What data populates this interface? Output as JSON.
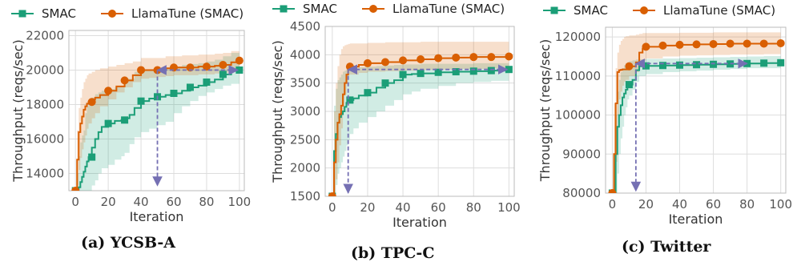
{
  "colors": {
    "smac": "#1b9e77",
    "llamatune": "#d95f02",
    "arrow": "#7570b3",
    "grid": "#dddddd"
  },
  "legend": {
    "smac": "SMAC",
    "llamatune": "LlamaTune (SMAC)"
  },
  "captions": [
    "(a) YCSB-A",
    "(b) TPC-C",
    "(c) Twitter"
  ],
  "chart_data": [
    {
      "type": "line",
      "xlabel": "Iteration",
      "ylabel": "Throughput (reqs/sec)",
      "xlim": [
        -4,
        103
      ],
      "ylim": [
        13000,
        22300
      ],
      "xticks": [
        "0",
        "20",
        "40",
        "60",
        "80",
        "100"
      ],
      "yticks": [
        "14000",
        "16000",
        "18000",
        "20000",
        "22000"
      ],
      "grid": true,
      "legend_position": "top",
      "series": [
        {
          "name": "SMAC",
          "step_x": [
            0,
            1,
            2,
            3,
            4,
            5,
            6,
            7,
            8,
            10,
            12,
            14,
            16,
            20,
            24,
            28,
            30,
            33,
            36,
            40,
            45,
            50,
            55,
            60,
            65,
            70,
            75,
            80,
            85,
            90,
            95,
            100
          ],
          "step_y": [
            13000,
            13050,
            13200,
            13500,
            13800,
            14100,
            14400,
            14700,
            14950,
            15500,
            16000,
            16400,
            16700,
            16900,
            17050,
            17100,
            17200,
            17400,
            17800,
            18200,
            18350,
            18450,
            18550,
            18650,
            18800,
            19000,
            19100,
            19300,
            19450,
            19750,
            19950,
            20000
          ],
          "upper": [
            13000,
            14000,
            15000,
            15800,
            16200,
            16500,
            17500,
            17900,
            18200,
            18400,
            18600,
            18700,
            18800,
            18900,
            19000,
            19000,
            19500,
            19500,
            19900,
            20000,
            20000,
            20000,
            20100,
            20200,
            20300,
            20350,
            20400,
            20500,
            20600,
            20800,
            21000,
            21100
          ],
          "lower": [
            13000,
            13000,
            13000,
            13000,
            13000,
            13000,
            13000,
            13000,
            13000,
            13300,
            13600,
            14000,
            14300,
            14500,
            14800,
            15000,
            15200,
            15700,
            16100,
            16400,
            16600,
            16800,
            17000,
            17500,
            17900,
            18200,
            18500,
            18700,
            18900,
            19100,
            19200,
            19200
          ],
          "markers_x": [
            0,
            10,
            20,
            30,
            40,
            50,
            60,
            70,
            80,
            90,
            100
          ],
          "markers_y": [
            13000,
            14950,
            16900,
            17100,
            18200,
            18450,
            18650,
            19000,
            19300,
            19750,
            20000
          ]
        },
        {
          "name": "LlamaTune (SMAC)",
          "step_x": [
            0,
            1,
            2,
            3,
            4,
            5,
            6,
            7,
            8,
            10,
            12,
            15,
            20,
            25,
            30,
            35,
            40,
            45,
            50,
            55,
            60,
            65,
            70,
            75,
            80,
            85,
            90,
            95,
            100
          ],
          "step_y": [
            13000,
            14800,
            16400,
            16900,
            17300,
            17700,
            17900,
            18050,
            18150,
            18300,
            18400,
            18550,
            18800,
            19050,
            19400,
            19700,
            20000,
            20000,
            20000,
            20100,
            20150,
            20150,
            20150,
            20200,
            20200,
            20250,
            20300,
            20450,
            20550
          ],
          "upper": [
            13000,
            16500,
            17800,
            18400,
            18900,
            19300,
            19500,
            19700,
            19800,
            19900,
            20000,
            20100,
            20200,
            20300,
            20400,
            20500,
            20700,
            20700,
            20700,
            20800,
            20800,
            20850,
            20850,
            20900,
            20900,
            20950,
            21000,
            21100,
            21200
          ],
          "lower": [
            13000,
            13300,
            14200,
            14900,
            15400,
            15800,
            16200,
            16600,
            16900,
            17200,
            17500,
            17900,
            18300,
            18700,
            19000,
            19300,
            19500,
            19550,
            19600,
            19650,
            19700,
            19700,
            19700,
            19750,
            19750,
            19800,
            19850,
            19900,
            19950
          ],
          "markers_x": [
            0,
            10,
            20,
            30,
            40,
            50,
            60,
            70,
            80,
            90,
            100
          ],
          "markers_y": [
            13000,
            18150,
            18800,
            19400,
            20000,
            20000,
            20150,
            20150,
            20200,
            20300,
            20550
          ]
        }
      ],
      "arrow_h": [
        [
          99,
          20000
        ],
        [
          50,
          20000
        ]
      ],
      "arrow_v": [
        [
          50,
          20000
        ],
        [
          50,
          13300
        ]
      ]
    },
    {
      "type": "line",
      "xlabel": "Iteration",
      "ylabel": "Throughput (reqs/sec)",
      "xlim": [
        -4,
        103
      ],
      "ylim": [
        1500,
        4500
      ],
      "xticks": [
        "0",
        "20",
        "40",
        "60",
        "80",
        "100"
      ],
      "yticks": [
        "1500",
        "2000",
        "2500",
        "3000",
        "3500",
        "4000",
        "4500"
      ],
      "grid": true,
      "legend_position": "top",
      "series": [
        {
          "name": "SMAC",
          "step_x": [
            0,
            1,
            2,
            3,
            4,
            5,
            6,
            7,
            8,
            9,
            10,
            12,
            15,
            20,
            25,
            30,
            35,
            40,
            45,
            50,
            60,
            70,
            80,
            90,
            100
          ],
          "step_y": [
            1500,
            2300,
            2600,
            2800,
            2900,
            2950,
            3000,
            3080,
            3150,
            3200,
            3200,
            3230,
            3280,
            3330,
            3420,
            3500,
            3550,
            3650,
            3660,
            3670,
            3690,
            3700,
            3710,
            3720,
            3740
          ],
          "upper": [
            1500,
            3100,
            3400,
            3550,
            3600,
            3650,
            3700,
            3720,
            3740,
            3750,
            3760,
            3770,
            3780,
            3790,
            3800,
            3810,
            3820,
            3830,
            3830,
            3840,
            3840,
            3840,
            3850,
            3850,
            3860
          ],
          "lower": [
            1500,
            1500,
            1700,
            1900,
            2000,
            2100,
            2200,
            2300,
            2400,
            2500,
            2600,
            2700,
            2800,
            2900,
            3000,
            3100,
            3200,
            3300,
            3350,
            3400,
            3450,
            3500,
            3520,
            3540,
            3560
          ],
          "markers_x": [
            0,
            10,
            20,
            30,
            40,
            50,
            60,
            70,
            80,
            90,
            100
          ],
          "markers_y": [
            1500,
            3200,
            3330,
            3500,
            3650,
            3670,
            3690,
            3700,
            3710,
            3720,
            3740
          ]
        },
        {
          "name": "LlamaTune (SMAC)",
          "step_x": [
            0,
            1,
            2,
            3,
            4,
            5,
            6,
            7,
            8,
            9,
            10,
            15,
            20,
            30,
            40,
            50,
            60,
            70,
            80,
            90,
            100
          ],
          "step_y": [
            1500,
            2100,
            2500,
            2800,
            2950,
            3100,
            3300,
            3500,
            3650,
            3790,
            3790,
            3820,
            3850,
            3870,
            3900,
            3920,
            3940,
            3950,
            3960,
            3960,
            3970
          ],
          "upper": [
            1500,
            3000,
            3500,
            3800,
            4000,
            4100,
            4150,
            4170,
            4180,
            4190,
            4200,
            4200,
            4210,
            4220,
            4220,
            4230,
            4230,
            4230,
            4230,
            4230,
            4230
          ],
          "lower": [
            1500,
            1500,
            1800,
            2100,
            2400,
            2700,
            3000,
            3300,
            3500,
            3650,
            3650,
            3680,
            3700,
            3710,
            3720,
            3730,
            3740,
            3750,
            3750,
            3760,
            3760
          ],
          "markers_x": [
            0,
            10,
            20,
            30,
            40,
            50,
            60,
            70,
            80,
            90,
            100
          ],
          "markers_y": [
            1500,
            3790,
            3850,
            3870,
            3900,
            3920,
            3940,
            3950,
            3960,
            3960,
            3970
          ]
        }
      ],
      "arrow_h": [
        [
          99,
          3740
        ],
        [
          9,
          3740
        ]
      ],
      "arrow_v": [
        [
          9,
          3740
        ],
        [
          9,
          1560
        ]
      ]
    },
    {
      "type": "line",
      "xlabel": "Iteration",
      "ylabel": "Throughput (reqs/sec)",
      "xlim": [
        -4,
        103
      ],
      "ylim": [
        80000,
        122500
      ],
      "xticks": [
        "0",
        "20",
        "40",
        "60",
        "80",
        "100"
      ],
      "yticks": [
        "80000",
        "90000",
        "100000",
        "110000",
        "120000"
      ],
      "grid": true,
      "legend_position": "top",
      "series": [
        {
          "name": "SMAC",
          "step_x": [
            0,
            1,
            2,
            3,
            4,
            5,
            6,
            7,
            8,
            9,
            10,
            12,
            14,
            16,
            20,
            30,
            40,
            50,
            60,
            70,
            80,
            90,
            100
          ],
          "step_y": [
            80000,
            80000,
            90000,
            97000,
            100000,
            102500,
            104500,
            105500,
            106500,
            107500,
            107800,
            109000,
            111500,
            112500,
            112600,
            112700,
            112800,
            112900,
            113000,
            113100,
            113200,
            113300,
            113400
          ],
          "upper": [
            80000,
            88000,
            100000,
            106000,
            109000,
            111000,
            112000,
            112800,
            113300,
            113600,
            113800,
            114000,
            114200,
            114300,
            114400,
            114500,
            114600,
            114700,
            114800,
            114900,
            115000,
            115100,
            115200
          ],
          "lower": [
            80000,
            80000,
            80000,
            85000,
            90000,
            94000,
            97000,
            100000,
            102000,
            104000,
            105000,
            106500,
            108500,
            110000,
            110500,
            111000,
            111200,
            111400,
            111600,
            111800,
            112000,
            112000,
            112100
          ],
          "markers_x": [
            0,
            10,
            20,
            30,
            40,
            50,
            60,
            70,
            80,
            90,
            100
          ],
          "markers_y": [
            80000,
            107800,
            112600,
            112700,
            112800,
            112900,
            113000,
            113100,
            113200,
            113300,
            113400
          ]
        },
        {
          "name": "LlamaTune (SMAC)",
          "step_x": [
            0,
            1,
            2,
            3,
            4,
            5,
            6,
            7,
            8,
            10,
            14,
            16,
            18,
            20,
            30,
            40,
            50,
            60,
            70,
            80,
            90,
            100
          ],
          "step_y": [
            80000,
            90000,
            103000,
            111000,
            111500,
            111600,
            111700,
            111700,
            111700,
            112500,
            113500,
            116000,
            117000,
            117500,
            117800,
            118000,
            118100,
            118200,
            118300,
            118300,
            118300,
            118400
          ],
          "upper": [
            80000,
            103000,
            112000,
            116000,
            118000,
            119000,
            119500,
            120000,
            120200,
            120400,
            120600,
            120800,
            121000,
            121000,
            121000,
            121100,
            121100,
            121200,
            121200,
            121200,
            121200,
            121200
          ],
          "lower": [
            80000,
            80000,
            88000,
            100000,
            104000,
            106000,
            107500,
            108500,
            109000,
            110000,
            111000,
            113000,
            114000,
            114500,
            115000,
            115200,
            115300,
            115400,
            115500,
            115500,
            115600,
            115600
          ],
          "markers_x": [
            0,
            10,
            20,
            30,
            40,
            50,
            60,
            70,
            80,
            90,
            100
          ],
          "markers_y": [
            80000,
            112500,
            117500,
            117800,
            118000,
            118100,
            118200,
            118300,
            118300,
            118300,
            118400
          ]
        }
      ],
      "arrow_h": [
        [
          80,
          113200
        ],
        [
          14,
          113200
        ]
      ],
      "arrow_v": [
        [
          14,
          113200
        ],
        [
          14,
          80600
        ]
      ]
    }
  ]
}
